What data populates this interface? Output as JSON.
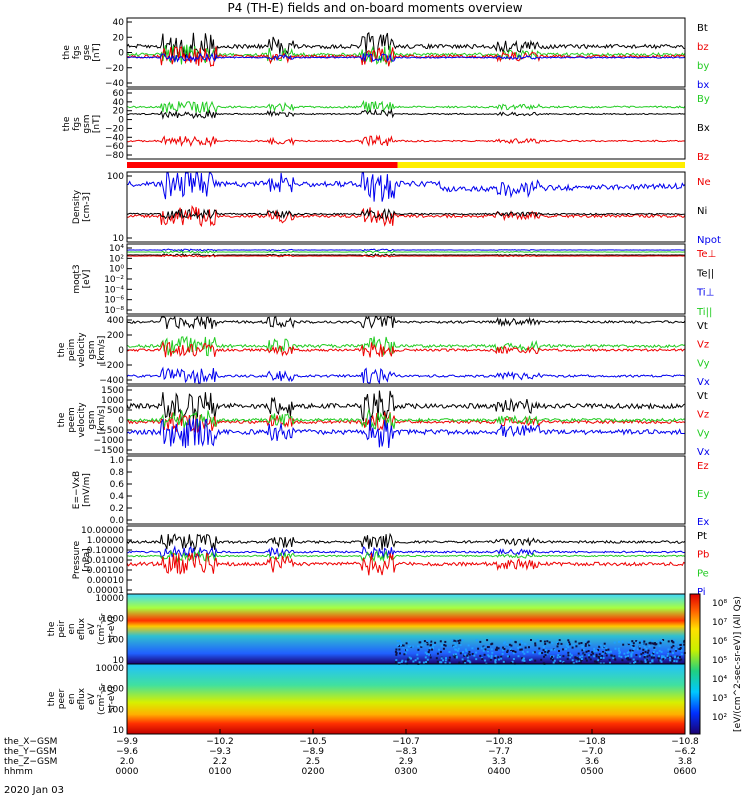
{
  "title": "P4 (TH-E) fields and on-board moments overview",
  "date_label": "2020 Jan 03",
  "colors": {
    "black": "#000000",
    "red": "#ee0000",
    "green": "#22cc22",
    "blue": "#0000ee",
    "yellow": "#ffee00",
    "bar_red": "#ff0000"
  },
  "chart_data": [
    {
      "id": "fgs_gse",
      "type": "line",
      "ylabel": [
        "the",
        "fgs",
        "gse",
        "[nT]"
      ],
      "ylim": [
        -40,
        40
      ],
      "yticks": [
        "40",
        "20",
        "0",
        "−20",
        "−40"
      ],
      "legend": [
        {
          "name": "Bt",
          "color": "#000000"
        },
        {
          "name": "bz",
          "color": "#ee0000"
        },
        {
          "name": "by",
          "color": "#22cc22"
        },
        {
          "name": "bx",
          "color": "#0000ee"
        }
      ]
    },
    {
      "id": "fgs_gsm",
      "type": "line",
      "ylabel": [
        "the",
        "fgs",
        "gsm",
        "[nT]"
      ],
      "ylim": [
        -80,
        60
      ],
      "yticks": [
        "60",
        "40",
        "20",
        "0",
        "−20",
        "−40",
        "−60",
        "−80"
      ],
      "legend": [
        {
          "name": "By",
          "color": "#22cc22"
        },
        {
          "name": "Bx",
          "color": "#000000"
        },
        {
          "name": "Bz",
          "color": "#ee0000"
        }
      ]
    },
    {
      "id": "density",
      "type": "line",
      "ylabel": [
        "Density",
        "[cm-3]"
      ],
      "ylog": true,
      "yticks": [
        "100",
        "10"
      ],
      "legend": [
        {
          "name": "Ne",
          "color": "#ee0000"
        },
        {
          "name": "Ni",
          "color": "#000000"
        },
        {
          "name": "Npot",
          "color": "#0000ee"
        }
      ]
    },
    {
      "id": "temperature",
      "type": "line",
      "ylabel": [
        "moqt3",
        "[eV]"
      ],
      "ylog": true,
      "yticks": [
        "10⁴",
        "10²",
        "10⁰",
        "10⁻²",
        "10⁻⁴",
        "10⁻⁶",
        "10⁻⁸"
      ],
      "legend": [
        {
          "name": "Te⊥",
          "color": "#ee0000"
        },
        {
          "name": "Te||",
          "color": "#000000"
        },
        {
          "name": "Ti⊥",
          "color": "#0000ee"
        },
        {
          "name": "Ti||",
          "color": "#22cc22"
        }
      ]
    },
    {
      "id": "peim_velocity",
      "type": "line",
      "ylabel": [
        "the",
        "peim",
        "velocity",
        "gsm",
        "[km/s]"
      ],
      "ylim": [
        -400,
        400
      ],
      "yticks": [
        "400",
        "200",
        "0",
        "−200",
        "−400"
      ],
      "legend": [
        {
          "name": "Vt",
          "color": "#000000"
        },
        {
          "name": "Vz",
          "color": "#ee0000"
        },
        {
          "name": "Vy",
          "color": "#22cc22"
        },
        {
          "name": "Vx",
          "color": "#0000ee"
        }
      ]
    },
    {
      "id": "peem_velocity",
      "type": "line",
      "ylabel": [
        "the",
        "peem",
        "velocity",
        "gsm",
        "[km/s]"
      ],
      "ylim": [
        -1500,
        1500
      ],
      "yticks": [
        "1500",
        "1000",
        "500",
        "0",
        "−500",
        "−1000",
        "−1500"
      ],
      "legend": [
        {
          "name": "Vt",
          "color": "#000000"
        },
        {
          "name": "Vz",
          "color": "#ee0000"
        },
        {
          "name": "Vy",
          "color": "#22cc22"
        },
        {
          "name": "Vx",
          "color": "#0000ee"
        }
      ]
    },
    {
      "id": "efield",
      "type": "line",
      "ylabel": [
        "E=−VxB",
        "[mV/m]"
      ],
      "ylim": [
        0,
        1
      ],
      "yticks": [
        "1.0",
        "0.8",
        "0.6",
        "0.4",
        "0.2",
        "0.0"
      ],
      "legend": [
        {
          "name": "Ez",
          "color": "#ee0000"
        },
        {
          "name": "Ey",
          "color": "#22cc22"
        },
        {
          "name": "Ex",
          "color": "#0000ee"
        }
      ]
    },
    {
      "id": "pressure",
      "type": "line",
      "ylabel": [
        "Pressure",
        "[nPa]"
      ],
      "ylog": true,
      "yticks": [
        "10.00000",
        "1.00000",
        "0.10000",
        "0.01000",
        "0.00100",
        "0.00010",
        "0.00001"
      ],
      "legend": [
        {
          "name": "Pt",
          "color": "#000000"
        },
        {
          "name": "Pb",
          "color": "#ee0000"
        },
        {
          "name": "Pe",
          "color": "#22cc22"
        },
        {
          "name": "Pi",
          "color": "#0000ee"
        }
      ]
    },
    {
      "id": "peir_spec",
      "type": "heatmap",
      "ylabel": [
        "the",
        "peir",
        "en",
        "eflux",
        "eV",
        "(cm²-s-",
        "sr-eV)"
      ],
      "ylog": true,
      "yticks": [
        "10000",
        "1000",
        "100",
        "10"
      ]
    },
    {
      "id": "peer_spec",
      "type": "heatmap",
      "ylabel": [
        "the",
        "peer",
        "en",
        "eflux",
        "eV",
        "(cm²-s-",
        "sr-eV)"
      ],
      "ylog": true,
      "yticks": [
        "10000",
        "1000",
        "100",
        "10"
      ],
      "colorbar": {
        "label": "[eV/(cm^2-sec-sr-eV)] (All Qs)",
        "ticks": [
          "10⁸",
          "10⁷",
          "10⁶",
          "10⁵",
          "10⁴",
          "10³",
          "10²"
        ]
      }
    }
  ],
  "xaxis": {
    "row_labels": [
      "the_X−GSM",
      "the_Y−GSM",
      "the_Z−GSM",
      "hhmm"
    ],
    "columns": [
      {
        "x": "−9.9",
        "y": "−9.6",
        "z": "2.0",
        "t": "0000"
      },
      {
        "x": "−10.2",
        "y": "−9.3",
        "z": "2.2",
        "t": "0100"
      },
      {
        "x": "−10.5",
        "y": "−8.9",
        "z": "2.5",
        "t": "0200"
      },
      {
        "x": "−10.7",
        "y": "−8.3",
        "z": "2.9",
        "t": "0300"
      },
      {
        "x": "−10.8",
        "y": "−7.7",
        "z": "3.3",
        "t": "0400"
      },
      {
        "x": "−10.8",
        "y": "−7.0",
        "z": "3.6",
        "t": "0500"
      },
      {
        "x": "−10.8",
        "y": "−6.2",
        "z": "3.8",
        "t": "0600"
      }
    ]
  }
}
